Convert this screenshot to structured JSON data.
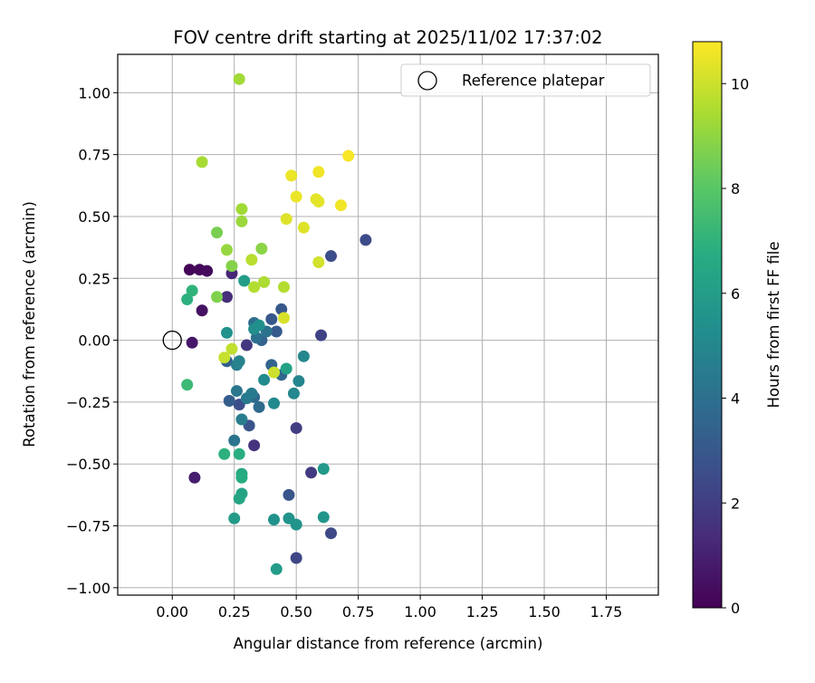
{
  "chart_data": {
    "type": "scatter",
    "title": "FOV centre drift starting at 2025/11/02 17:37:02",
    "xlabel": "Angular distance from reference (arcmin)",
    "ylabel": "Rotation from reference (arcmin)",
    "xlim": [
      -0.22,
      1.96
    ],
    "ylim": [
      -1.03,
      1.155
    ],
    "x_ticks": [
      "0.00",
      "0.25",
      "0.50",
      "0.75",
      "1.00",
      "1.25",
      "1.50",
      "1.75"
    ],
    "y_ticks": [
      "1.00",
      "0.75",
      "0.50",
      "0.25",
      "0.00",
      "−0.25",
      "−0.50",
      "−0.75",
      "−1.00"
    ],
    "grid": true,
    "legend_position": "top-right",
    "legend": [
      {
        "label": "Reference platepar",
        "marker": "open-circle",
        "x": 0.0,
        "y": 0.0
      }
    ],
    "colorbar": {
      "label": "Hours from first FF file",
      "colormap": "viridis",
      "range": [
        0,
        10.8
      ],
      "ticks": [
        "0",
        "2",
        "4",
        "6",
        "8",
        "10"
      ]
    },
    "points": [
      {
        "x": 0.07,
        "y": 0.285,
        "c": 0.1
      },
      {
        "x": 0.11,
        "y": 0.285,
        "c": 0.2
      },
      {
        "x": 0.14,
        "y": 0.28,
        "c": 0.3
      },
      {
        "x": 0.12,
        "y": 0.12,
        "c": 0.5
      },
      {
        "x": 0.08,
        "y": -0.01,
        "c": 0.7
      },
      {
        "x": 0.09,
        "y": -0.555,
        "c": 0.9
      },
      {
        "x": 0.24,
        "y": 0.27,
        "c": 1.2
      },
      {
        "x": 0.22,
        "y": 0.175,
        "c": 1.4
      },
      {
        "x": 0.33,
        "y": -0.425,
        "c": 1.6
      },
      {
        "x": 0.3,
        "y": -0.02,
        "c": 1.8
      },
      {
        "x": 0.56,
        "y": -0.535,
        "c": 1.9
      },
      {
        "x": 0.5,
        "y": -0.355,
        "c": 2.0
      },
      {
        "x": 0.6,
        "y": 0.02,
        "c": 2.2
      },
      {
        "x": 0.5,
        "y": -0.88,
        "c": 2.3
      },
      {
        "x": 0.64,
        "y": -0.78,
        "c": 2.4
      },
      {
        "x": 0.78,
        "y": 0.405,
        "c": 2.5
      },
      {
        "x": 0.64,
        "y": 0.34,
        "c": 2.6
      },
      {
        "x": 0.27,
        "y": -0.26,
        "c": 2.6
      },
      {
        "x": 0.31,
        "y": -0.345,
        "c": 2.8
      },
      {
        "x": 0.47,
        "y": -0.625,
        "c": 2.9
      },
      {
        "x": 0.4,
        "y": 0.085,
        "c": 3.0
      },
      {
        "x": 0.44,
        "y": 0.125,
        "c": 3.0
      },
      {
        "x": 0.42,
        "y": 0.035,
        "c": 3.1
      },
      {
        "x": 0.23,
        "y": -0.245,
        "c": 3.2
      },
      {
        "x": 0.22,
        "y": -0.085,
        "c": 3.3
      },
      {
        "x": 0.36,
        "y": 0.0,
        "c": 3.4
      },
      {
        "x": 0.4,
        "y": -0.1,
        "c": 3.5
      },
      {
        "x": 0.44,
        "y": -0.14,
        "c": 3.6
      },
      {
        "x": 0.33,
        "y": -0.23,
        "c": 3.7
      },
      {
        "x": 0.35,
        "y": -0.27,
        "c": 3.8
      },
      {
        "x": 0.33,
        "y": 0.07,
        "c": 3.9
      },
      {
        "x": 0.34,
        "y": 0.01,
        "c": 4.0
      },
      {
        "x": 0.38,
        "y": 0.035,
        "c": 4.1
      },
      {
        "x": 0.25,
        "y": -0.405,
        "c": 4.2
      },
      {
        "x": 0.26,
        "y": -0.205,
        "c": 4.3
      },
      {
        "x": 0.3,
        "y": -0.235,
        "c": 4.4
      },
      {
        "x": 0.32,
        "y": -0.215,
        "c": 4.5
      },
      {
        "x": 0.28,
        "y": -0.32,
        "c": 4.6
      },
      {
        "x": 0.26,
        "y": -0.1,
        "c": 4.7
      },
      {
        "x": 0.27,
        "y": -0.085,
        "c": 4.8
      },
      {
        "x": 0.51,
        "y": -0.165,
        "c": 4.9
      },
      {
        "x": 0.53,
        "y": -0.065,
        "c": 5.0
      },
      {
        "x": 0.49,
        "y": -0.215,
        "c": 5.0
      },
      {
        "x": 0.41,
        "y": -0.255,
        "c": 5.1
      },
      {
        "x": 0.37,
        "y": -0.16,
        "c": 5.2
      },
      {
        "x": 0.33,
        "y": 0.045,
        "c": 5.3
      },
      {
        "x": 0.35,
        "y": 0.06,
        "c": 5.4
      },
      {
        "x": 0.22,
        "y": 0.03,
        "c": 5.5
      },
      {
        "x": 0.41,
        "y": -0.725,
        "c": 5.5
      },
      {
        "x": 0.47,
        "y": -0.72,
        "c": 5.6
      },
      {
        "x": 0.5,
        "y": -0.745,
        "c": 5.6
      },
      {
        "x": 0.61,
        "y": -0.715,
        "c": 5.7
      },
      {
        "x": 0.61,
        "y": -0.52,
        "c": 5.8
      },
      {
        "x": 0.25,
        "y": -0.72,
        "c": 5.9
      },
      {
        "x": 0.42,
        "y": -0.925,
        "c": 5.9
      },
      {
        "x": 0.29,
        "y": 0.24,
        "c": 6.0
      },
      {
        "x": 0.46,
        "y": -0.115,
        "c": 6.2
      },
      {
        "x": 0.28,
        "y": -0.62,
        "c": 6.3
      },
      {
        "x": 0.27,
        "y": -0.64,
        "c": 6.4
      },
      {
        "x": 0.28,
        "y": -0.54,
        "c": 6.6
      },
      {
        "x": 0.28,
        "y": -0.555,
        "c": 6.7
      },
      {
        "x": 0.27,
        "y": -0.46,
        "c": 6.8
      },
      {
        "x": 0.21,
        "y": -0.46,
        "c": 6.9
      },
      {
        "x": 0.06,
        "y": 0.165,
        "c": 6.9
      },
      {
        "x": 0.08,
        "y": 0.2,
        "c": 7.0
      },
      {
        "x": 0.06,
        "y": -0.18,
        "c": 7.3
      },
      {
        "x": 0.18,
        "y": 0.435,
        "c": 8.6
      },
      {
        "x": 0.18,
        "y": 0.175,
        "c": 8.7
      },
      {
        "x": 0.24,
        "y": 0.3,
        "c": 8.8
      },
      {
        "x": 0.36,
        "y": 0.37,
        "c": 8.9
      },
      {
        "x": 0.22,
        "y": 0.365,
        "c": 9.1
      },
      {
        "x": 0.28,
        "y": 0.48,
        "c": 9.2
      },
      {
        "x": 0.28,
        "y": 0.53,
        "c": 9.3
      },
      {
        "x": 0.27,
        "y": 1.055,
        "c": 9.3
      },
      {
        "x": 0.12,
        "y": 0.72,
        "c": 9.4
      },
      {
        "x": 0.37,
        "y": 0.235,
        "c": 9.5
      },
      {
        "x": 0.33,
        "y": 0.215,
        "c": 9.6
      },
      {
        "x": 0.45,
        "y": 0.215,
        "c": 9.6
      },
      {
        "x": 0.32,
        "y": 0.325,
        "c": 9.7
      },
      {
        "x": 0.24,
        "y": -0.035,
        "c": 9.8
      },
      {
        "x": 0.21,
        "y": -0.07,
        "c": 9.9
      },
      {
        "x": 0.41,
        "y": -0.13,
        "c": 10.0
      },
      {
        "x": 0.59,
        "y": 0.315,
        "c": 10.1
      },
      {
        "x": 0.45,
        "y": 0.09,
        "c": 10.2
      },
      {
        "x": 0.53,
        "y": 0.455,
        "c": 10.3
      },
      {
        "x": 0.46,
        "y": 0.49,
        "c": 10.3
      },
      {
        "x": 0.58,
        "y": 0.57,
        "c": 10.4
      },
      {
        "x": 0.59,
        "y": 0.56,
        "c": 10.4
      },
      {
        "x": 0.5,
        "y": 0.58,
        "c": 10.5
      },
      {
        "x": 0.48,
        "y": 0.665,
        "c": 10.5
      },
      {
        "x": 0.59,
        "y": 0.68,
        "c": 10.6
      },
      {
        "x": 0.68,
        "y": 0.545,
        "c": 10.6
      },
      {
        "x": 0.71,
        "y": 0.745,
        "c": 10.7
      }
    ]
  }
}
